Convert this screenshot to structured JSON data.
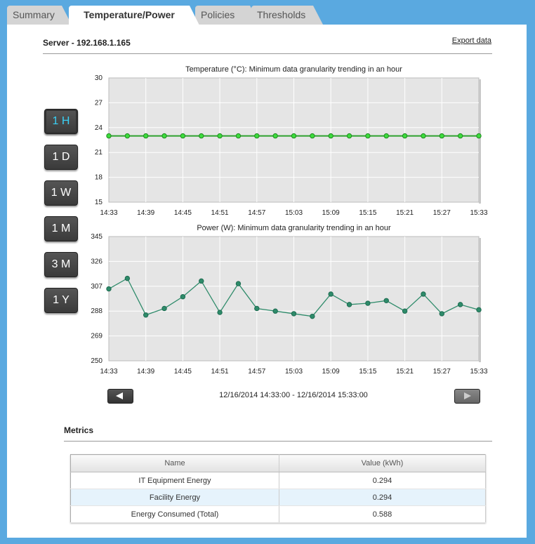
{
  "tabs": [
    {
      "label": "Summary"
    },
    {
      "label": "Temperature/Power"
    },
    {
      "label": "Policies"
    },
    {
      "label": "Thresholds"
    }
  ],
  "server_title": "Server - 192.168.1.165",
  "export_label": "Export data",
  "ranges": [
    "1 H",
    "1 D",
    "1 W",
    "1 M",
    "3 M",
    "1 Y"
  ],
  "active_range": "1 H",
  "time_range_label": "12/16/2014 14:33:00 - 12/16/2014 15:33:00",
  "metrics": {
    "title": "Metrics",
    "headers": [
      "Name",
      "Value (kWh)"
    ],
    "rows": [
      [
        "IT Equipment Energy",
        "0.294"
      ],
      [
        "Facility Energy",
        "0.294"
      ],
      [
        "Energy Consumed (Total)",
        "0.588"
      ]
    ]
  },
  "icons": {
    "prev": "left-arrow-icon",
    "next": "right-arrow-icon"
  },
  "colors": {
    "background": "#5aa9e0",
    "temp_line": "#2fa12f",
    "temp_marker": "#3ddc3d",
    "power_line": "#2e8b6a",
    "active_range_text": "#3ad0f5"
  },
  "chart_data": [
    {
      "type": "line",
      "title": "Temperature (°C): Minimum data granularity trending in an hour",
      "x_ticks": [
        "14:33",
        "14:39",
        "14:45",
        "14:51",
        "14:57",
        "15:03",
        "15:09",
        "15:15",
        "15:21",
        "15:27",
        "15:33"
      ],
      "y_ticks": [
        15,
        18,
        21,
        24,
        27,
        30
      ],
      "ylim": [
        15,
        30
      ],
      "grid": true,
      "series": [
        {
          "values": [
            23,
            23,
            23,
            23,
            23,
            23,
            23,
            23,
            23,
            23,
            23,
            23,
            23,
            23,
            23,
            23,
            23,
            23,
            23,
            23,
            23
          ]
        }
      ]
    },
    {
      "type": "line",
      "title": "Power (W): Minimum data granularity trending in an hour",
      "x_ticks": [
        "14:33",
        "14:39",
        "14:45",
        "14:51",
        "14:57",
        "15:03",
        "15:09",
        "15:15",
        "15:21",
        "15:27",
        "15:33"
      ],
      "y_ticks": [
        250,
        269,
        288,
        307,
        326,
        345
      ],
      "ylim": [
        250,
        345
      ],
      "grid": true,
      "series": [
        {
          "values": [
            305,
            313,
            285,
            290,
            299,
            311,
            287,
            309,
            290,
            288,
            286,
            284,
            301,
            293,
            294,
            296,
            288,
            301,
            286,
            293,
            289
          ]
        }
      ]
    }
  ]
}
